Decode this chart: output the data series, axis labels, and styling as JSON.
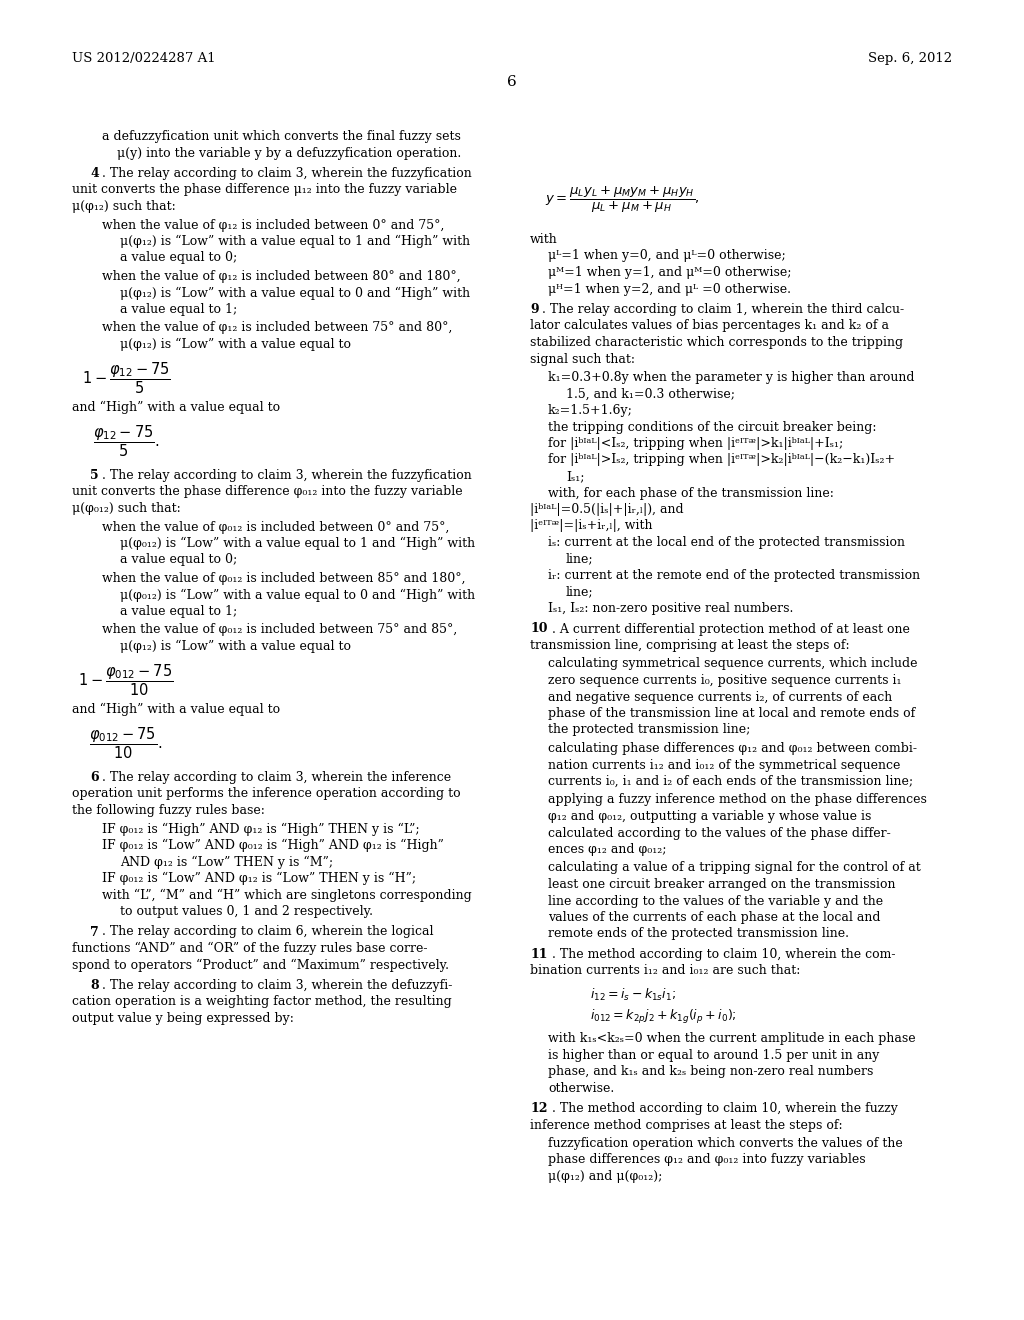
{
  "page_number": "6",
  "header_left": "US 2012/0224287 A1",
  "header_right": "Sep. 6, 2012",
  "background_color": "#ffffff",
  "text_color": "#000000"
}
